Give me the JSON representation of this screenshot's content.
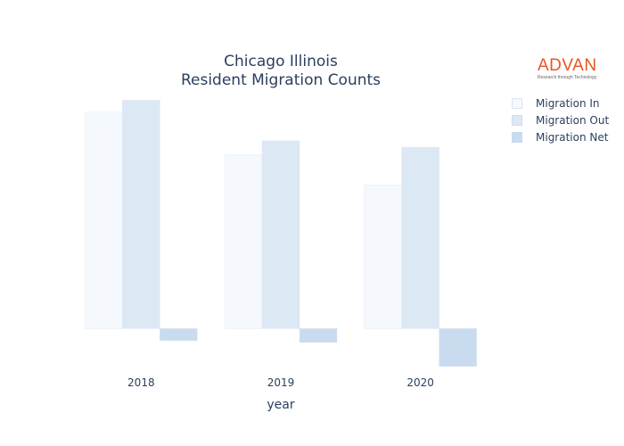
{
  "chart_data": {
    "type": "bar",
    "title": "Chicago Illinois",
    "subtitle": "Resident Migration Counts",
    "xlabel": "year",
    "ylabel": "",
    "categories": [
      "2018",
      "2019",
      "2020"
    ],
    "series": [
      {
        "name": "Migration In",
        "color": "#f5f9fd",
        "values": [
          235000,
          189000,
          156000
        ]
      },
      {
        "name": "Migration Out",
        "color": "#dde8f5",
        "values": [
          248000,
          204000,
          197000
        ]
      },
      {
        "name": "Migration Net",
        "color": "#c9dcef",
        "values": [
          -13000,
          -15000,
          -41000
        ]
      }
    ],
    "ylim": [
      -50000,
      260000
    ],
    "grid": false,
    "legend_position": "top-right"
  },
  "logo": {
    "name": "ADVAN",
    "tagline": "Research through Technology"
  }
}
